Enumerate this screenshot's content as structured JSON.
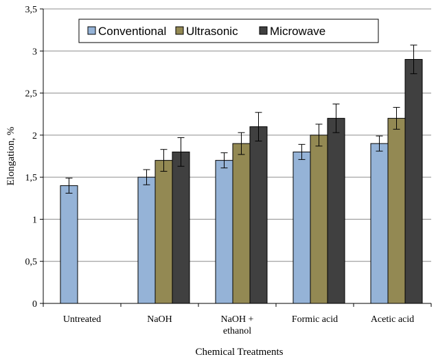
{
  "chart_data": {
    "type": "bar",
    "xlabel": "Chemical Treatments",
    "ylabel": "Elongation, %",
    "ylim": [
      0,
      3.5
    ],
    "yticks": [
      "0",
      "0,5",
      "1",
      "1,5",
      "2",
      "2,5",
      "3",
      "3,5"
    ],
    "ytick_values": [
      0,
      0.5,
      1,
      1.5,
      2,
      2.5,
      3,
      3.5
    ],
    "grid": true,
    "legend_position": "top-center",
    "categories": [
      [
        "Untreated"
      ],
      [
        "NaOH"
      ],
      [
        "NaOH +",
        "ethanol"
      ],
      [
        "Formic acid"
      ],
      [
        "Acetic acid"
      ]
    ],
    "series": [
      {
        "name": "Conventional",
        "color": "#95b3d7",
        "values": [
          1.4,
          1.5,
          1.7,
          1.8,
          1.9
        ],
        "errors": [
          0.09,
          0.09,
          0.09,
          0.09,
          0.09
        ]
      },
      {
        "name": "Ultrasonic",
        "color": "#938953",
        "values": [
          null,
          1.7,
          1.9,
          2.0,
          2.2
        ],
        "errors": [
          null,
          0.13,
          0.13,
          0.13,
          0.13
        ]
      },
      {
        "name": "Microwave",
        "color": "#404040",
        "values": [
          null,
          1.8,
          2.1,
          2.2,
          2.9
        ],
        "errors": [
          null,
          0.17,
          0.17,
          0.17,
          0.17
        ]
      }
    ]
  }
}
